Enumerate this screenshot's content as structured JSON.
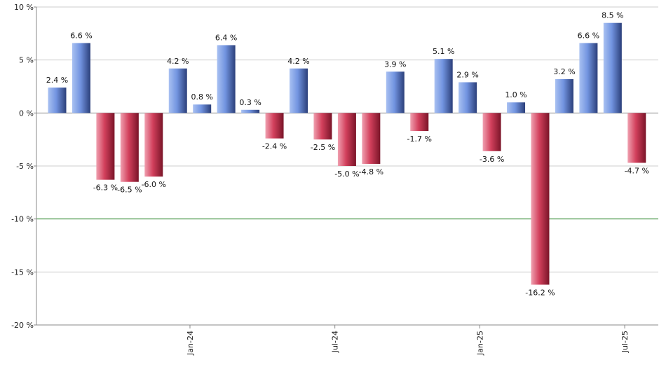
{
  "chart_data": {
    "type": "bar",
    "title": "",
    "xlabel": "",
    "ylabel": "",
    "ylim": [
      -20,
      10
    ],
    "yticks": [
      10,
      5,
      0,
      -5,
      -10,
      -15,
      -20
    ],
    "ytick_labels": [
      "10 %",
      "5 %",
      "0 %",
      "-5 %",
      "-10 %",
      "-15 %",
      "-20 %"
    ],
    "grid": true,
    "reference_line": {
      "value": -10,
      "color": "#2e8b2e"
    },
    "colors": {
      "positive": "#6f93dd",
      "negative": "#c8354f",
      "axis": "#888888",
      "grid": "#cccccc"
    },
    "values": [
      2.4,
      6.6,
      -6.3,
      -6.5,
      -6.0,
      4.2,
      0.8,
      6.4,
      0.3,
      -2.4,
      4.2,
      -2.5,
      -5.0,
      -4.8,
      3.9,
      -1.7,
      5.1,
      2.9,
      -3.6,
      1.0,
      -16.2,
      3.2,
      6.6,
      8.5,
      -4.7
    ],
    "labels": [
      "2.4 %",
      "6.6 %",
      "-6.3 %",
      "-6.5 %",
      "-6.0 %",
      "4.2 %",
      "0.8 %",
      "6.4 %",
      "0.3 %",
      "-2.4 %",
      "4.2 %",
      "-2.5 %",
      "-5.0 %",
      "-4.8 %",
      "3.9 %",
      "-1.7 %",
      "5.1 %",
      "2.9 %",
      "-3.6 %",
      "1.0 %",
      "-16.2 %",
      "3.2 %",
      "6.6 %",
      "8.5 %",
      "-4.7 %"
    ],
    "x_tick_labels": [
      {
        "index": 5.5,
        "label": "Jan-24"
      },
      {
        "index": 11.5,
        "label": "Jul-24"
      },
      {
        "index": 17.5,
        "label": "Jan-25"
      },
      {
        "index": 23.5,
        "label": "Jul-25"
      }
    ]
  }
}
